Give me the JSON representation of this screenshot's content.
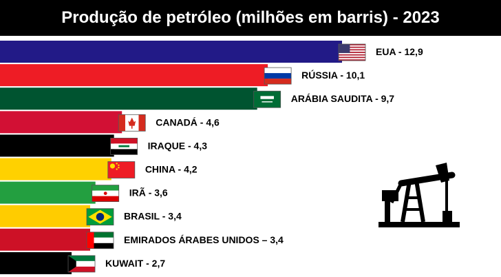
{
  "chart_data": {
    "type": "bar",
    "orientation": "horizontal",
    "title": "Produção de petróleo (milhões em barris) - 2023",
    "xlabel": "",
    "ylabel": "",
    "xlim": [
      0,
      12.9
    ],
    "grid": false,
    "legend": "none",
    "categories": [
      "EUA",
      "RÚSSIA",
      "ARÁBIA SAUDITA",
      "CANADÁ",
      "IRAQUE",
      "CHINA",
      "IRÃ",
      "BRASIL",
      "EMIRADOS ÁRABES UNIDOS",
      "KUWAIT"
    ],
    "values": [
      12.9,
      10.1,
      9.7,
      4.6,
      4.3,
      4.2,
      3.6,
      3.4,
      3.4,
      2.7
    ],
    "labels": [
      "EUA - 12,9",
      "RÚSSIA - 10,1",
      "ARÁBIA SAUDITA - 9,7",
      "CANADÁ - 4,6",
      "IRAQUE - 4,3",
      "CHINA - 4,2",
      "IRÃ - 3,6",
      "BRASIL - 3,4",
      "EMIRADOS ÁRABES UNIDOS – 3,4",
      "KUWAIT - 2,7"
    ],
    "bar_colors": [
      "#221a87",
      "#ee1c25",
      "#005430",
      "#d21034",
      "#000000",
      "#ffd100",
      "#239f40",
      "#ffcc00",
      "#cd1126",
      "#000000"
    ],
    "flags": [
      "usa-flag",
      "russia-flag",
      "saudi-arabia-flag",
      "canada-flag",
      "iraq-flag",
      "china-flag",
      "iran-flag",
      "brazil-flag",
      "uae-flag",
      "kuwait-flag"
    ]
  },
  "colors": {
    "title_bg": "#000000",
    "title_text": "#ffffff",
    "label_text": "#000000",
    "icon": "#000000"
  },
  "icon": "oil-pump-jack-icon"
}
